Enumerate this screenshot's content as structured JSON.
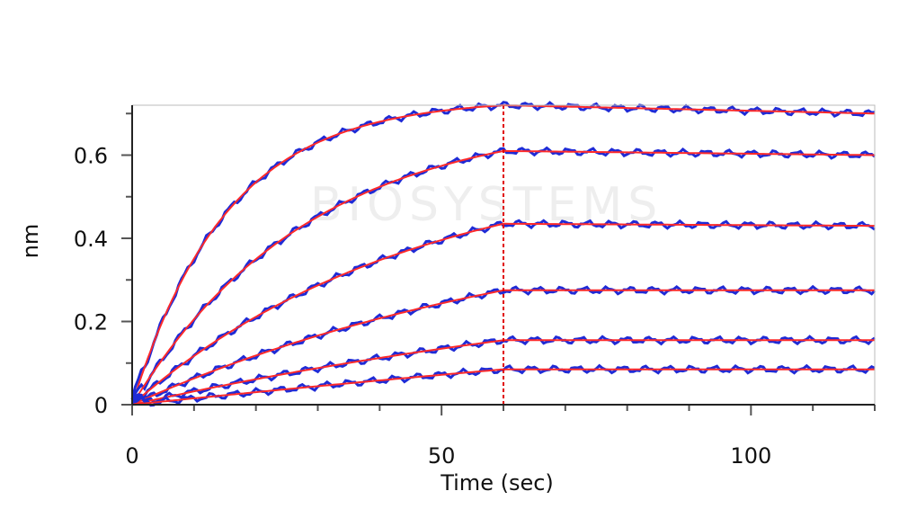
{
  "chart_data": {
    "type": "line",
    "title": "",
    "xlabel": "Time (sec)",
    "ylabel": "nm",
    "xlim": [
      0,
      120
    ],
    "ylim": [
      0,
      0.72
    ],
    "x_ticks": [
      0,
      50,
      100
    ],
    "y_ticks": [
      0,
      0.2,
      0.4,
      0.6
    ],
    "x_tick_labels": [
      "0",
      "50",
      "100"
    ],
    "y_tick_labels": [
      "0",
      "0.2",
      "0.4",
      "0.6"
    ],
    "dissociation_start": 60,
    "grid": false,
    "legend": "none",
    "colors": {
      "measured": "#1f2bd6",
      "fit": "#ff2a2a",
      "marker": "#e00000",
      "axis": "#222222"
    },
    "watermark": "BIOSYSTEMS",
    "series": [
      {
        "plateau_at_60s": 0.72,
        "end_value_120s": 0.7,
        "association_rate": 0.065
      },
      {
        "plateau_at_60s": 0.61,
        "end_value_120s": 0.6,
        "association_rate": 0.035
      },
      {
        "plateau_at_60s": 0.435,
        "end_value_120s": 0.43,
        "association_rate": 0.022
      },
      {
        "plateau_at_60s": 0.275,
        "end_value_120s": 0.275,
        "association_rate": 0.014
      },
      {
        "plateau_at_60s": 0.155,
        "end_value_120s": 0.155,
        "association_rate": 0.009
      },
      {
        "plateau_at_60s": 0.085,
        "end_value_120s": 0.085,
        "association_rate": 0.003
      }
    ]
  }
}
